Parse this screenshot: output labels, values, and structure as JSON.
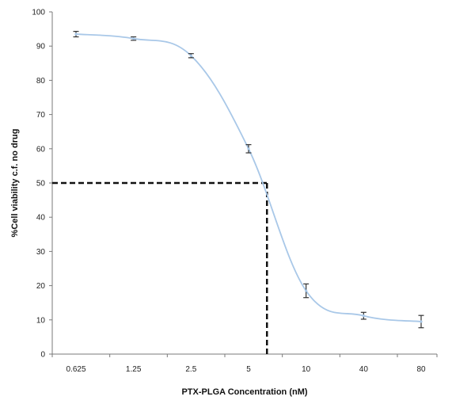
{
  "chart_data": {
    "type": "line",
    "categories": [
      "0.625",
      "1.25",
      "2.5",
      "5",
      "10",
      "40",
      "80"
    ],
    "series": [
      {
        "values": [
          93.5,
          92.2,
          87.2,
          60.0,
          18.5,
          11.2,
          9.5
        ],
        "error": [
          0.8,
          0.5,
          0.6,
          1.2,
          2.0,
          1.0,
          1.8
        ],
        "color": "#a9c8e8"
      }
    ],
    "ic50_marker": {
      "x_between": [
        "5",
        "10"
      ],
      "x_fraction": 0.32,
      "y": 50,
      "color": "#111111",
      "style": "dashed"
    },
    "xlabel": "PTX-PLGA Concentration (nM)",
    "ylabel": "%Cell viability  c.f. no drug",
    "ylim": [
      0,
      100
    ],
    "yticks": [
      0,
      10,
      20,
      30,
      40,
      50,
      60,
      70,
      80,
      90,
      100
    ],
    "grid": false,
    "legend": "none"
  }
}
